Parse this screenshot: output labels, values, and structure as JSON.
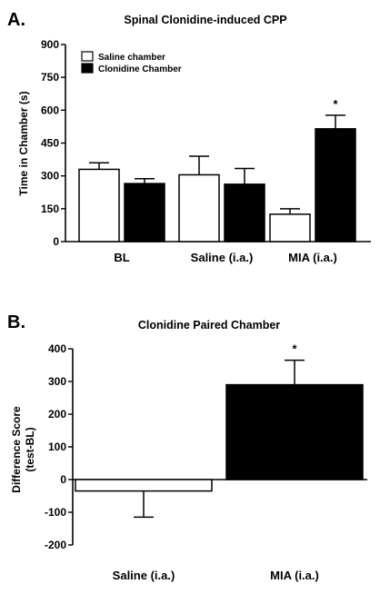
{
  "chart_data": [
    {
      "panel": "A.",
      "type": "bar",
      "title": "Spinal Clonidine-induced CPP",
      "ylabel": "Time in Chamber (s)",
      "xlabel": "",
      "ylim": [
        0,
        900
      ],
      "yticks": [
        0,
        150,
        300,
        450,
        600,
        750,
        900
      ],
      "categories": [
        "BL",
        "Saline (i.a.)",
        "MIA (i.a.)"
      ],
      "legend_position": "top-left",
      "series": [
        {
          "name": "Saline chamber",
          "color": "#ffffff",
          "values": [
            330,
            305,
            125
          ],
          "errors": [
            30,
            85,
            25
          ]
        },
        {
          "name": "Clonidine Chamber",
          "color": "#000000",
          "values": [
            265,
            262,
            515
          ],
          "errors": [
            22,
            72,
            62
          ]
        }
      ],
      "annotations": [
        {
          "text": "*",
          "category": "MIA (i.a.)",
          "series": "Clonidine Chamber"
        }
      ]
    },
    {
      "panel": "B.",
      "type": "bar",
      "title": "Clonidine Paired Chamber",
      "ylabel": "Difference Score (test-BL)",
      "ylabel_lines": [
        "Difference Score",
        "(test-BL)"
      ],
      "xlabel": "",
      "ylim": [
        -200,
        400
      ],
      "yticks": [
        -200,
        -100,
        0,
        100,
        200,
        300,
        400
      ],
      "categories": [
        "Saline (i.a.)",
        "MIA (i.a.)"
      ],
      "series": [
        {
          "values": [
            -35,
            290
          ],
          "errors": [
            80,
            75
          ],
          "colors": [
            "#ffffff",
            "#000000"
          ]
        }
      ],
      "annotations": [
        {
          "text": "*",
          "category": "MIA (i.a.)"
        }
      ]
    }
  ]
}
